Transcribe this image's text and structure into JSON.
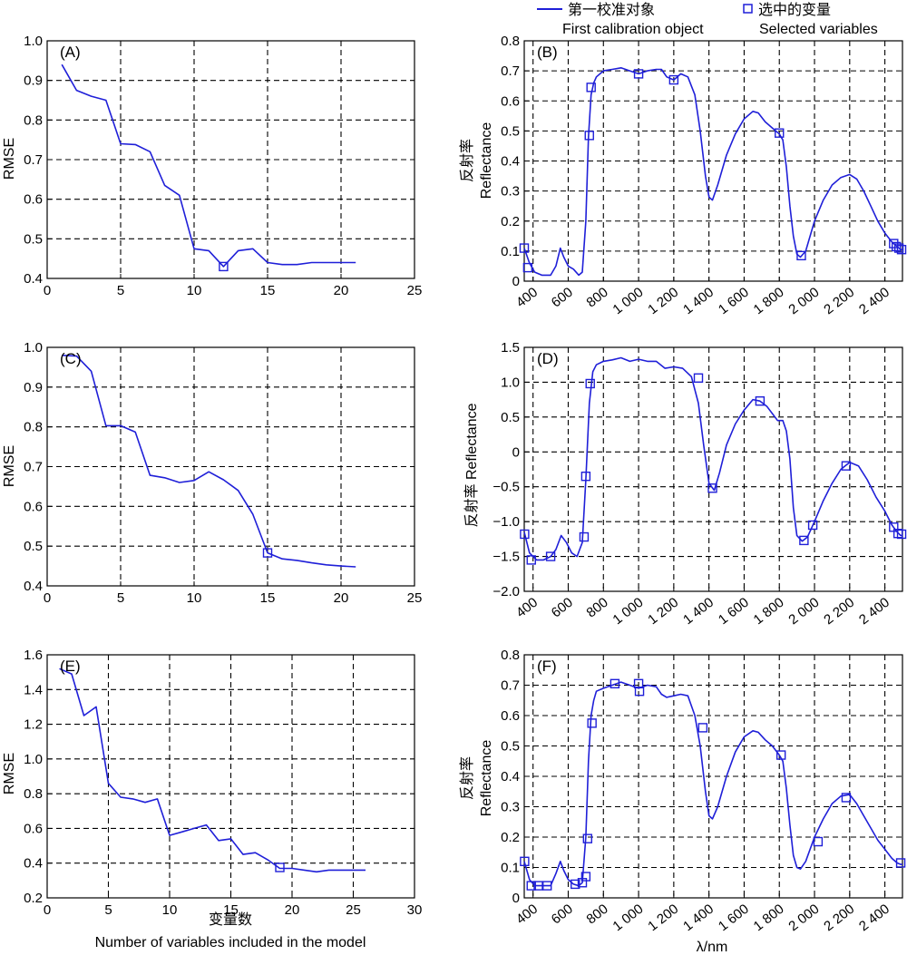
{
  "legend": {
    "line_cn": "第一校准对象",
    "line_en": "First calibration object",
    "marker_cn": "选中的变量",
    "marker_en": "Selected variables",
    "color": "#1f1fd8"
  },
  "shared_labels": {
    "rmse_ylabel": "RMSE",
    "x_cn": "变量数",
    "x_en": "Number of variables included in the model",
    "refl_ylabel_cn": "反射率",
    "refl_ylabel_en": "Reflectance",
    "refl_ylabel_d": "反射率 Reflectance",
    "wl_label": "λ/nm"
  },
  "chart_data": [
    {
      "id": "A",
      "panel_label": "(A)",
      "type": "line",
      "xlim": [
        0,
        25
      ],
      "ylim": [
        0.4,
        1.0
      ],
      "xticks": [
        0,
        5,
        10,
        15,
        20,
        25
      ],
      "yticks": [
        0.4,
        0.5,
        0.6,
        0.7,
        0.8,
        0.9,
        1.0
      ],
      "ytick_labels": [
        "0.4",
        "0.5",
        "0.6",
        "0.7",
        "0.8",
        "0.9",
        "1.0"
      ],
      "grid": true,
      "x": [
        1,
        2,
        3,
        4,
        5,
        6,
        7,
        8,
        9,
        10,
        11,
        12,
        13,
        14,
        15,
        16,
        17,
        18,
        19,
        20,
        21
      ],
      "y": [
        0.94,
        0.875,
        0.86,
        0.85,
        0.74,
        0.738,
        0.72,
        0.635,
        0.61,
        0.475,
        0.47,
        0.43,
        0.47,
        0.475,
        0.44,
        0.435,
        0.435,
        0.44,
        0.44,
        0.44,
        0.44
      ],
      "selected": [
        {
          "x": 12,
          "y": 0.43
        }
      ]
    },
    {
      "id": "B",
      "panel_label": "(B)",
      "type": "line",
      "xlim": [
        350,
        2500
      ],
      "ylim": [
        0,
        0.8
      ],
      "xticks": [
        400,
        600,
        800,
        1000,
        1200,
        1400,
        1600,
        1800,
        2000,
        2200,
        2400
      ],
      "xtick_labels": [
        "400",
        "600",
        "800",
        "1 000",
        "1 200",
        "1 400",
        "1 600",
        "1 800",
        "2 000",
        "2 200",
        "2 400"
      ],
      "yticks": [
        0,
        0.1,
        0.2,
        0.3,
        0.4,
        0.5,
        0.6,
        0.7,
        0.8
      ],
      "ytick_labels": [
        "0",
        "0.1",
        "0.2",
        "0.3",
        "0.4",
        "0.5",
        "0.6",
        "0.7",
        "0.8"
      ],
      "grid": true,
      "x": [
        350,
        380,
        410,
        450,
        500,
        530,
        555,
        575,
        600,
        630,
        660,
        680,
        700,
        715,
        730,
        745,
        760,
        800,
        850,
        900,
        950,
        1000,
        1050,
        1100,
        1130,
        1160,
        1200,
        1240,
        1280,
        1320,
        1350,
        1380,
        1400,
        1420,
        1450,
        1500,
        1550,
        1600,
        1650,
        1680,
        1720,
        1760,
        1800,
        1820,
        1840,
        1860,
        1880,
        1900,
        1920,
        1950,
        2000,
        2050,
        2100,
        2150,
        2200,
        2240,
        2280,
        2320,
        2360,
        2400,
        2440,
        2470,
        2490,
        2500
      ],
      "y": [
        0.11,
        0.06,
        0.03,
        0.02,
        0.02,
        0.05,
        0.11,
        0.08,
        0.05,
        0.04,
        0.02,
        0.03,
        0.2,
        0.48,
        0.62,
        0.66,
        0.68,
        0.7,
        0.705,
        0.71,
        0.7,
        0.69,
        0.7,
        0.705,
        0.705,
        0.68,
        0.67,
        0.69,
        0.68,
        0.62,
        0.5,
        0.35,
        0.28,
        0.27,
        0.32,
        0.42,
        0.49,
        0.54,
        0.565,
        0.56,
        0.53,
        0.51,
        0.49,
        0.47,
        0.38,
        0.25,
        0.15,
        0.09,
        0.08,
        0.1,
        0.2,
        0.27,
        0.32,
        0.345,
        0.355,
        0.34,
        0.3,
        0.25,
        0.2,
        0.16,
        0.13,
        0.115,
        0.105,
        0.105
      ],
      "selected": [
        {
          "x": 350,
          "y": 0.11
        },
        {
          "x": 370,
          "y": 0.045
        },
        {
          "x": 720,
          "y": 0.485
        },
        {
          "x": 730,
          "y": 0.645
        },
        {
          "x": 1000,
          "y": 0.69
        },
        {
          "x": 1200,
          "y": 0.67
        },
        {
          "x": 1800,
          "y": 0.493
        },
        {
          "x": 1925,
          "y": 0.085
        },
        {
          "x": 2450,
          "y": 0.125
        },
        {
          "x": 2465,
          "y": 0.115
        },
        {
          "x": 2480,
          "y": 0.11
        },
        {
          "x": 2495,
          "y": 0.105
        }
      ]
    },
    {
      "id": "C",
      "panel_label": "(C)",
      "type": "line",
      "xlim": [
        0,
        25
      ],
      "ylim": [
        0.4,
        1.0
      ],
      "xticks": [
        0,
        5,
        10,
        15,
        20,
        25
      ],
      "yticks": [
        0.4,
        0.5,
        0.6,
        0.7,
        0.8,
        0.9,
        1.0
      ],
      "ytick_labels": [
        "0.4",
        "0.5",
        "0.6",
        "0.7",
        "0.8",
        "0.9",
        "1.0"
      ],
      "grid": true,
      "x": [
        1,
        2,
        3,
        4,
        5,
        6,
        7,
        8,
        9,
        10,
        11,
        12,
        13,
        14,
        15,
        16,
        17,
        18,
        19,
        20,
        21
      ],
      "y": [
        0.98,
        0.978,
        0.94,
        0.803,
        0.803,
        0.787,
        0.678,
        0.672,
        0.66,
        0.665,
        0.687,
        0.667,
        0.64,
        0.58,
        0.483,
        0.468,
        0.464,
        0.458,
        0.453,
        0.45,
        0.448
      ],
      "selected": [
        {
          "x": 15,
          "y": 0.483
        }
      ]
    },
    {
      "id": "D",
      "panel_label": "(D)",
      "type": "line",
      "xlim": [
        350,
        2500
      ],
      "ylim": [
        -2.0,
        1.5
      ],
      "xticks": [
        400,
        600,
        800,
        1000,
        1200,
        1400,
        1600,
        1800,
        2000,
        2200,
        2400
      ],
      "xtick_labels": [
        "400",
        "600",
        "800",
        "1 000",
        "1 200",
        "1 400",
        "1 600",
        "1 800",
        "2 000",
        "2 200",
        "2 400"
      ],
      "yticks": [
        -2.0,
        -1.5,
        -1.0,
        -0.5,
        0,
        0.5,
        1.0,
        1.5
      ],
      "ytick_labels": [
        "−2.0",
        "−1.5",
        "−1.0",
        "−0.5",
        "0",
        "0.5",
        "1.0",
        "1.5"
      ],
      "grid": true,
      "x": [
        350,
        380,
        420,
        460,
        500,
        530,
        560,
        590,
        620,
        650,
        680,
        700,
        720,
        740,
        760,
        800,
        850,
        900,
        950,
        1000,
        1050,
        1100,
        1150,
        1200,
        1250,
        1300,
        1340,
        1370,
        1400,
        1430,
        1460,
        1500,
        1550,
        1600,
        1650,
        1690,
        1730,
        1760,
        1790,
        1820,
        1840,
        1860,
        1880,
        1900,
        1930,
        1960,
        2000,
        2050,
        2100,
        2150,
        2200,
        2250,
        2300,
        2350,
        2400,
        2440,
        2470,
        2490,
        2500
      ],
      "y": [
        -1.15,
        -1.45,
        -1.55,
        -1.55,
        -1.5,
        -1.4,
        -1.2,
        -1.3,
        -1.45,
        -1.5,
        -1.3,
        -0.4,
        0.7,
        1.15,
        1.25,
        1.3,
        1.32,
        1.35,
        1.3,
        1.33,
        1.3,
        1.3,
        1.2,
        1.22,
        1.2,
        1.08,
        0.7,
        0.1,
        -0.45,
        -0.55,
        -0.3,
        0.1,
        0.4,
        0.6,
        0.75,
        0.73,
        0.65,
        0.55,
        0.45,
        0.45,
        0.3,
        -0.1,
        -0.8,
        -1.2,
        -1.28,
        -1.22,
        -1.0,
        -0.7,
        -0.45,
        -0.25,
        -0.15,
        -0.2,
        -0.4,
        -0.65,
        -0.85,
        -1.05,
        -1.15,
        -1.2,
        -1.2
      ],
      "selected": [
        {
          "x": 352,
          "y": -1.18
        },
        {
          "x": 390,
          "y": -1.55
        },
        {
          "x": 500,
          "y": -1.5
        },
        {
          "x": 690,
          "y": -1.22
        },
        {
          "x": 700,
          "y": -0.35
        },
        {
          "x": 725,
          "y": 0.98
        },
        {
          "x": 1340,
          "y": 1.06
        },
        {
          "x": 1420,
          "y": -0.52
        },
        {
          "x": 1690,
          "y": 0.73
        },
        {
          "x": 1940,
          "y": -1.27
        },
        {
          "x": 1990,
          "y": -1.05
        },
        {
          "x": 2180,
          "y": -0.2
        },
        {
          "x": 2450,
          "y": -1.08
        },
        {
          "x": 2475,
          "y": -1.17
        },
        {
          "x": 2495,
          "y": -1.18
        }
      ]
    },
    {
      "id": "E",
      "panel_label": "(E)",
      "type": "line",
      "xlim": [
        0,
        30
      ],
      "ylim": [
        0.2,
        1.6
      ],
      "xticks": [
        0,
        5,
        10,
        15,
        20,
        25,
        30
      ],
      "yticks": [
        0.2,
        0.4,
        0.6,
        0.8,
        1.0,
        1.2,
        1.4,
        1.6
      ],
      "ytick_labels": [
        "0.2",
        "0.4",
        "0.6",
        "0.8",
        "1.0",
        "1.2",
        "1.4",
        "1.6"
      ],
      "grid": true,
      "x": [
        1,
        2,
        3,
        4,
        5,
        6,
        7,
        8,
        9,
        10,
        11,
        12,
        13,
        14,
        15,
        16,
        17,
        18,
        19,
        20,
        21,
        22,
        23,
        24,
        25,
        26
      ],
      "y": [
        1.52,
        1.49,
        1.25,
        1.3,
        0.86,
        0.78,
        0.77,
        0.75,
        0.77,
        0.56,
        0.58,
        0.6,
        0.62,
        0.53,
        0.54,
        0.45,
        0.46,
        0.42,
        0.37,
        0.37,
        0.36,
        0.35,
        0.36,
        0.36,
        0.36,
        0.36
      ],
      "selected": [
        {
          "x": 19,
          "y": 0.375
        }
      ]
    },
    {
      "id": "F",
      "panel_label": "(F)",
      "type": "line",
      "xlim": [
        350,
        2500
      ],
      "ylim": [
        0,
        0.8
      ],
      "xticks": [
        400,
        600,
        800,
        1000,
        1200,
        1400,
        1600,
        1800,
        2000,
        2200,
        2400
      ],
      "xtick_labels": [
        "400",
        "600",
        "800",
        "1 000",
        "1 200",
        "1 400",
        "1 600",
        "1 800",
        "2 000",
        "2 200",
        "2 400"
      ],
      "yticks": [
        0,
        0.1,
        0.2,
        0.3,
        0.4,
        0.5,
        0.6,
        0.7,
        0.8
      ],
      "ytick_labels": [
        "0",
        "0.1",
        "0.2",
        "0.3",
        "0.4",
        "0.5",
        "0.6",
        "0.7",
        "0.8"
      ],
      "grid": true,
      "x": [
        350,
        380,
        410,
        450,
        500,
        530,
        555,
        575,
        600,
        630,
        660,
        680,
        700,
        715,
        730,
        745,
        760,
        800,
        850,
        900,
        950,
        1000,
        1050,
        1100,
        1130,
        1160,
        1200,
        1240,
        1280,
        1320,
        1350,
        1380,
        1400,
        1420,
        1450,
        1500,
        1550,
        1600,
        1650,
        1680,
        1720,
        1760,
        1800,
        1820,
        1840,
        1860,
        1880,
        1900,
        1920,
        1950,
        2000,
        2050,
        2100,
        2150,
        2200,
        2240,
        2280,
        2320,
        2360,
        2400,
        2440,
        2470,
        2490,
        2500
      ],
      "y": [
        0.12,
        0.06,
        0.04,
        0.04,
        0.04,
        0.08,
        0.12,
        0.09,
        0.06,
        0.045,
        0.04,
        0.05,
        0.2,
        0.45,
        0.6,
        0.65,
        0.68,
        0.69,
        0.7,
        0.71,
        0.7,
        0.69,
        0.7,
        0.695,
        0.67,
        0.66,
        0.665,
        0.67,
        0.665,
        0.6,
        0.5,
        0.35,
        0.27,
        0.26,
        0.3,
        0.4,
        0.48,
        0.53,
        0.55,
        0.545,
        0.52,
        0.5,
        0.47,
        0.45,
        0.36,
        0.24,
        0.14,
        0.1,
        0.095,
        0.12,
        0.2,
        0.26,
        0.31,
        0.335,
        0.34,
        0.31,
        0.27,
        0.23,
        0.19,
        0.16,
        0.13,
        0.115,
        0.11,
        0.11
      ],
      "selected": [
        {
          "x": 352,
          "y": 0.12
        },
        {
          "x": 390,
          "y": 0.04
        },
        {
          "x": 430,
          "y": 0.04
        },
        {
          "x": 480,
          "y": 0.04
        },
        {
          "x": 640,
          "y": 0.045
        },
        {
          "x": 680,
          "y": 0.05
        },
        {
          "x": 700,
          "y": 0.07
        },
        {
          "x": 710,
          "y": 0.195
        },
        {
          "x": 735,
          "y": 0.575
        },
        {
          "x": 865,
          "y": 0.705
        },
        {
          "x": 1000,
          "y": 0.705
        },
        {
          "x": 1005,
          "y": 0.68
        },
        {
          "x": 1365,
          "y": 0.56
        },
        {
          "x": 1810,
          "y": 0.47
        },
        {
          "x": 2020,
          "y": 0.185
        },
        {
          "x": 2180,
          "y": 0.33
        },
        {
          "x": 2490,
          "y": 0.115
        }
      ]
    }
  ]
}
